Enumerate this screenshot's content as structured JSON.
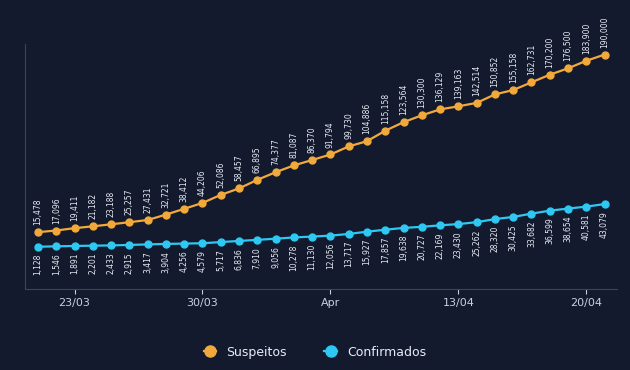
{
  "chart_data": {
    "type": "line",
    "categories": [
      null,
      null,
      "23/03",
      null,
      null,
      null,
      null,
      null,
      null,
      "30/03",
      null,
      null,
      null,
      null,
      null,
      null,
      "Apr",
      null,
      null,
      null,
      null,
      null,
      null,
      "13/04",
      null,
      null,
      null,
      null,
      null,
      null,
      "20/04",
      null
    ],
    "series": [
      {
        "name": "Suspeitos",
        "color": "#f2a93b",
        "marker": "circle",
        "line_style": "solid",
        "values": [
          15478,
          17096,
          19411,
          21182,
          23188,
          25257,
          27431,
          32721,
          38412,
          44206,
          52086,
          58457,
          66895,
          74377,
          81087,
          86370,
          91794,
          99730,
          104886,
          115158,
          123564,
          130300,
          136129,
          139163,
          142514,
          150852,
          155158,
          162731,
          170200,
          176500,
          183900,
          190000
        ],
        "value_labels": [
          "15,478",
          "17,096",
          "19,411",
          "21,182",
          "23,188",
          "25,257",
          "27,431",
          "32,721",
          "38,412",
          "44,206",
          "52,086",
          "58,457",
          "66,895",
          "74,377",
          "81,087",
          "86,370",
          "91,794",
          "99,730",
          "104,886",
          "115,158",
          "123,564",
          "130,300",
          "136,129",
          "139,163",
          "142,514",
          "150,852",
          "155,158",
          "162,731",
          "170,200",
          "176,500",
          "183,900",
          "190,000"
        ]
      },
      {
        "name": "Confirmados",
        "color": "#2ec8f2",
        "marker": "circle",
        "line_style": "solid",
        "values": [
          1128,
          1546,
          1891,
          2201,
          2433,
          2915,
          3417,
          3904,
          4256,
          4579,
          5717,
          6836,
          7910,
          9056,
          10278,
          11130,
          12056,
          13717,
          15927,
          17857,
          19638,
          20727,
          22169,
          23430,
          25262,
          28320,
          30425,
          33682,
          36599,
          38654,
          40581,
          43079
        ],
        "value_labels": [
          "1,128",
          "1,546",
          "1,891",
          "2,201",
          "2,433",
          "2,915",
          "3,417",
          "3,904",
          "4,256",
          "4,579",
          "5,717",
          "6,836",
          "7,910",
          "9,056",
          "10,278",
          "11,130",
          "12,056",
          "13,717",
          "15,927",
          "17,857",
          "19,638",
          "20,727",
          "22,169",
          "23,430",
          "25,262",
          "28,320",
          "30,425",
          "33,682",
          "36,599",
          "38,654",
          "40,581",
          "43,079"
        ]
      }
    ],
    "ylim": [
      -40000,
      200000
    ],
    "data_labels": true,
    "tick_labels": "x",
    "grid": false,
    "legend": "lower center"
  }
}
